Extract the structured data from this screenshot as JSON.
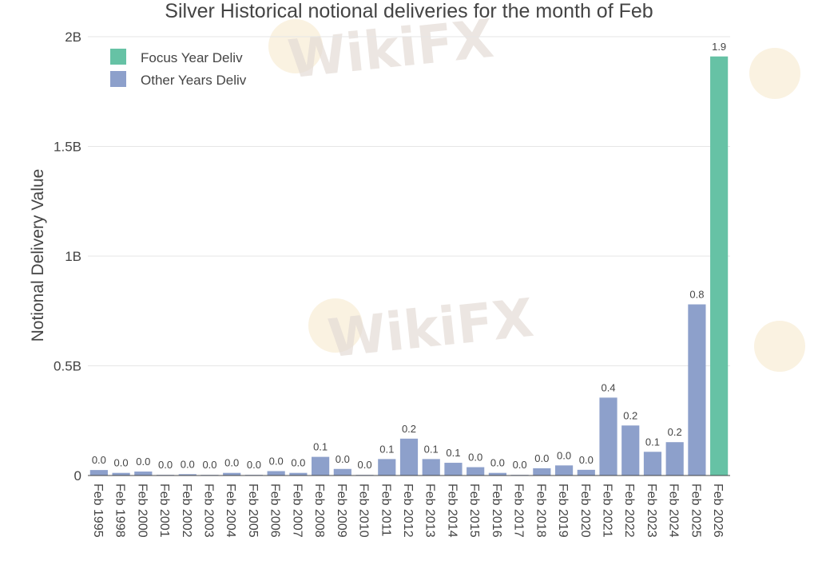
{
  "chart_data": {
    "type": "bar",
    "title": "Silver Historical notional deliveries for the month of Feb",
    "xlabel": "",
    "ylabel": "Notional Delivery Value",
    "ylim": [
      0,
      2000000000
    ],
    "yticks": [
      {
        "value": 0,
        "label": "0"
      },
      {
        "value": 500000000,
        "label": "0.5B"
      },
      {
        "value": 1000000000,
        "label": "1B"
      },
      {
        "value": 1500000000,
        "label": "1.5B"
      },
      {
        "value": 2000000000,
        "label": "2B"
      }
    ],
    "grid": true,
    "legend_position": "top-left",
    "series": [
      {
        "name": "Focus Year Deliv",
        "color": "#66c2a5"
      },
      {
        "name": "Other Years Deliv",
        "color": "#8da0cb"
      }
    ],
    "bars": [
      {
        "category": "Feb 1995",
        "value": 25000000,
        "label": "0.0",
        "series": "Other Years Deliv"
      },
      {
        "category": "Feb 1998",
        "value": 12000000,
        "label": "0.0",
        "series": "Other Years Deliv"
      },
      {
        "category": "Feb 2000",
        "value": 18000000,
        "label": "0.0",
        "series": "Other Years Deliv"
      },
      {
        "category": "Feb 2001",
        "value": 3000000,
        "label": "0.0",
        "series": "Other Years Deliv"
      },
      {
        "category": "Feb 2002",
        "value": 6000000,
        "label": "0.0",
        "series": "Other Years Deliv"
      },
      {
        "category": "Feb 2003",
        "value": 2000000,
        "label": "0.0",
        "series": "Other Years Deliv"
      },
      {
        "category": "Feb 2004",
        "value": 12000000,
        "label": "0.0",
        "series": "Other Years Deliv"
      },
      {
        "category": "Feb 2005",
        "value": 3000000,
        "label": "0.0",
        "series": "Other Years Deliv"
      },
      {
        "category": "Feb 2006",
        "value": 20000000,
        "label": "0.0",
        "series": "Other Years Deliv"
      },
      {
        "category": "Feb 2007",
        "value": 12000000,
        "label": "0.0",
        "series": "Other Years Deliv"
      },
      {
        "category": "Feb 2008",
        "value": 85000000,
        "label": "0.1",
        "series": "Other Years Deliv"
      },
      {
        "category": "Feb 2009",
        "value": 30000000,
        "label": "0.0",
        "series": "Other Years Deliv"
      },
      {
        "category": "Feb 2010",
        "value": 2000000,
        "label": "0.0",
        "series": "Other Years Deliv"
      },
      {
        "category": "Feb 2011",
        "value": 75000000,
        "label": "0.1",
        "series": "Other Years Deliv"
      },
      {
        "category": "Feb 2012",
        "value": 168000000,
        "label": "0.2",
        "series": "Other Years Deliv"
      },
      {
        "category": "Feb 2013",
        "value": 75000000,
        "label": "0.1",
        "series": "Other Years Deliv"
      },
      {
        "category": "Feb 2014",
        "value": 58000000,
        "label": "0.1",
        "series": "Other Years Deliv"
      },
      {
        "category": "Feb 2015",
        "value": 38000000,
        "label": "0.0",
        "series": "Other Years Deliv"
      },
      {
        "category": "Feb 2016",
        "value": 12000000,
        "label": "0.0",
        "series": "Other Years Deliv"
      },
      {
        "category": "Feb 2017",
        "value": 2000000,
        "label": "0.0",
        "series": "Other Years Deliv"
      },
      {
        "category": "Feb 2018",
        "value": 33000000,
        "label": "0.0",
        "series": "Other Years Deliv"
      },
      {
        "category": "Feb 2019",
        "value": 46000000,
        "label": "0.0",
        "series": "Other Years Deliv"
      },
      {
        "category": "Feb 2020",
        "value": 26000000,
        "label": "0.0",
        "series": "Other Years Deliv"
      },
      {
        "category": "Feb 2021",
        "value": 355000000,
        "label": "0.4",
        "series": "Other Years Deliv"
      },
      {
        "category": "Feb 2022",
        "value": 228000000,
        "label": "0.2",
        "series": "Other Years Deliv"
      },
      {
        "category": "Feb 2023",
        "value": 108000000,
        "label": "0.1",
        "series": "Other Years Deliv"
      },
      {
        "category": "Feb 2024",
        "value": 152000000,
        "label": "0.2",
        "series": "Other Years Deliv"
      },
      {
        "category": "Feb 2025",
        "value": 780000000,
        "label": "0.8",
        "series": "Other Years Deliv"
      },
      {
        "category": "Feb 2026",
        "value": 1910000000,
        "label": "1.9",
        "series": "Focus Year Deliv"
      }
    ]
  },
  "watermark": {
    "text": "WikiFX"
  }
}
